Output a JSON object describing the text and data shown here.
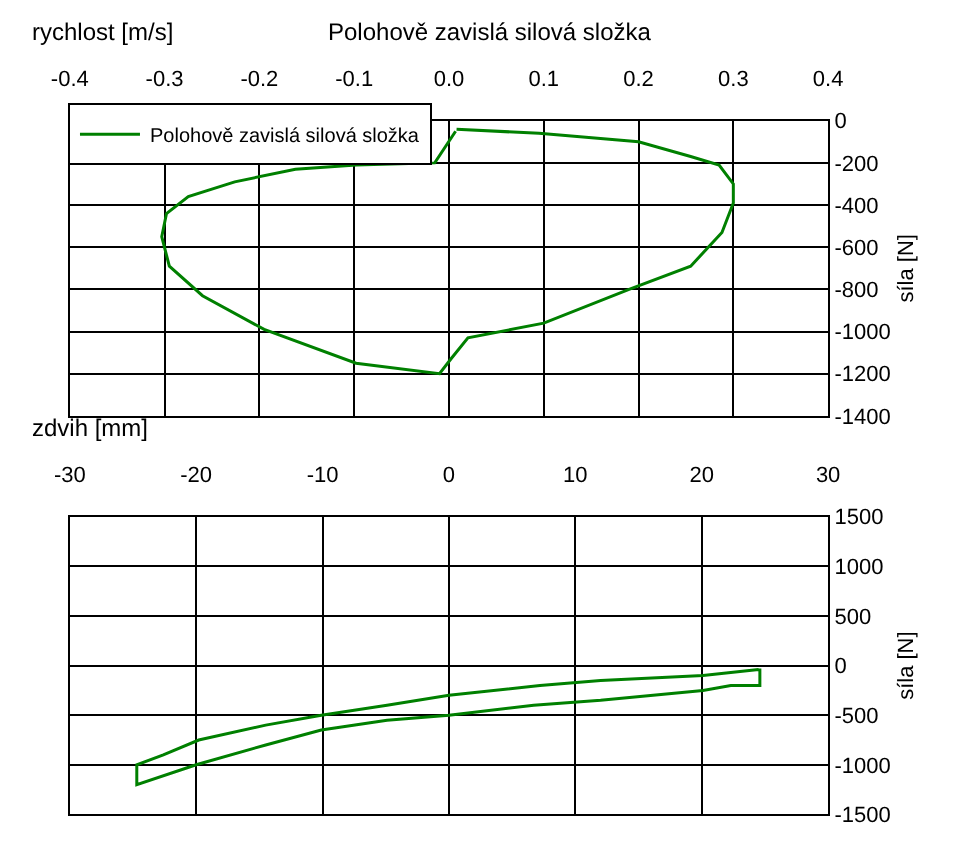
{
  "chart_data": [
    {
      "type": "line",
      "title": "Polohově zavislá silová složka",
      "xlabel": "rychlost [m/s]",
      "ylabel": "síla [N]",
      "legend": "top left",
      "grid": true,
      "marker": "none",
      "line_style": "solid",
      "xlim": [
        -0.4,
        0.4
      ],
      "xticks": [
        {
          "value": -0.4,
          "label": "-0.4"
        },
        {
          "value": -0.3,
          "label": "-0.3"
        },
        {
          "value": -0.2,
          "label": "-0.2"
        },
        {
          "value": -0.1,
          "label": "-0.1"
        },
        {
          "value": 0,
          "label": "0.0"
        },
        {
          "value": 0.1,
          "label": "0.1"
        },
        {
          "value": 0.2,
          "label": "0.2"
        },
        {
          "value": 0.3,
          "label": "0.3"
        },
        {
          "value": 0.4,
          "label": "0.4"
        }
      ],
      "ylim": [
        -1400,
        0
      ],
      "yticks": [
        -1400,
        -1200,
        -1000,
        -800,
        -600,
        -400,
        -200,
        0
      ],
      "series": [
        {
          "name": "Polohově zavislá silová složka",
          "color": "#008000",
          "x": [
            0.008,
            0.095,
            0.2,
            0.255,
            0.285,
            0.3,
            0.3,
            0.288,
            0.255,
            0.19,
            0.1,
            0.02,
            0.002,
            -0.01,
            -0.098,
            -0.195,
            -0.26,
            -0.295,
            -0.303,
            -0.298,
            -0.275,
            -0.226,
            -0.162,
            -0.098,
            -0.015,
            0.007
          ],
          "values": [
            -40,
            -60,
            -100,
            -170,
            -210,
            -300,
            -390,
            -530,
            -690,
            -800,
            -960,
            -1030,
            -1130,
            -1200,
            -1150,
            -990,
            -830,
            -690,
            -550,
            -440,
            -360,
            -290,
            -230,
            -210,
            -200,
            -50
          ]
        }
      ]
    },
    {
      "type": "line",
      "xlabel": "zdvih [mm]",
      "ylabel": "síla [N]",
      "grid": true,
      "marker": "none",
      "line_style": "solid",
      "xlim": [
        -30,
        30
      ],
      "xticks": [
        -30,
        -20,
        -10,
        0,
        10,
        20,
        30
      ],
      "ylim": [
        -1500,
        1500
      ],
      "yticks": [
        -1500,
        -1000,
        -500,
        0,
        500,
        1000,
        1500
      ],
      "series": [
        {
          "color": "#008000",
          "x": [
            24.6,
            24.6,
            22.3,
            20.1,
            12.0,
            6.7,
            0,
            -4.9,
            -10.1,
            -14.5,
            -20,
            -24.7,
            -24.7,
            -22.6,
            -19.8,
            -14.5,
            -10.1,
            -4.9,
            0,
            7.2,
            12,
            20.1,
            24.5
          ],
          "values": [
            -30,
            -200,
            -200,
            -250,
            -350,
            -400,
            -500,
            -550,
            -650,
            -800,
            -1000,
            -1200,
            -1000,
            -900,
            -750,
            -600,
            -500,
            -400,
            -300,
            -200,
            -150,
            -100,
            -40
          ]
        }
      ]
    }
  ]
}
